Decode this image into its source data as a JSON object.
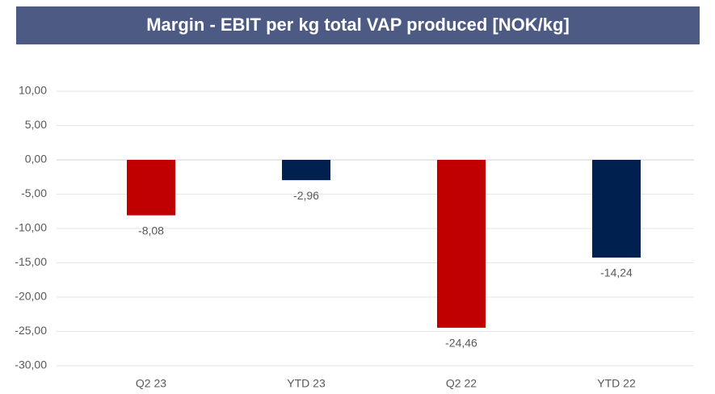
{
  "chart_data": {
    "type": "bar",
    "title": "Margin - EBIT per kg total VAP produced [NOK/kg]",
    "categories": [
      "Q2 23",
      "YTD 23",
      "Q2 22",
      "YTD 22"
    ],
    "values": [
      -8.08,
      -2.96,
      -24.46,
      -14.24
    ],
    "value_labels": [
      "-8,08",
      "-2,96",
      "-24,46",
      "-14,24"
    ],
    "colors": [
      "#c00000",
      "#002050",
      "#c00000",
      "#002050"
    ],
    "ylim": [
      -30,
      10
    ],
    "yticks": [
      {
        "value": -30,
        "label": "-30,00"
      },
      {
        "value": -25,
        "label": "-25,00"
      },
      {
        "value": -20,
        "label": "-20,00"
      },
      {
        "value": -15,
        "label": "-15,00"
      },
      {
        "value": -10,
        "label": "-10,00"
      },
      {
        "value": -5,
        "label": "-5,00"
      },
      {
        "value": 0,
        "label": "0,00"
      },
      {
        "value": 5,
        "label": "5,00"
      },
      {
        "value": 10,
        "label": "10,00"
      }
    ],
    "grid": true
  }
}
